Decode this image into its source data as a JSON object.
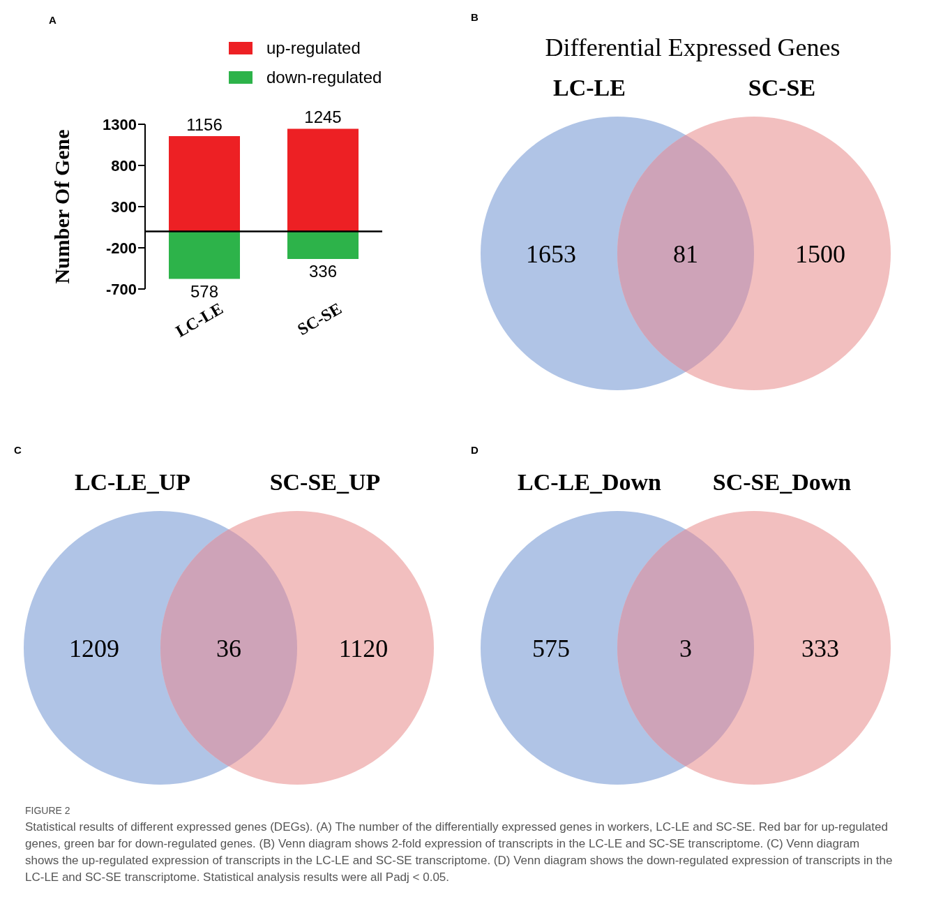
{
  "chart_data": [
    {
      "type": "bar",
      "title": "A",
      "categories": [
        "LC-LE",
        "SC-SE"
      ],
      "ylabel": "Number Of Gene",
      "ylim": [
        -700,
        1300
      ],
      "yticks": [
        -700,
        -200,
        300,
        800,
        1300
      ],
      "legend": "top",
      "ref_lines": [
        {
          "axis": "y",
          "value": 0
        }
      ],
      "series": [
        {
          "name": "up-regulated",
          "color": "#ed2024",
          "values": [
            1156,
            1245
          ],
          "base": [
            0,
            0
          ],
          "value_labels": [
            "1156",
            "1245"
          ]
        },
        {
          "name": "down-regulated",
          "color": "#2db34a",
          "values": [
            578,
            336
          ],
          "base": [
            -578,
            -336
          ],
          "value_labels": [
            "578",
            "336"
          ]
        }
      ]
    },
    {
      "type": "other",
      "title": "B",
      "subtitle": "Differential Expressed Genes",
      "categories": [
        null,
        null,
        null
      ],
      "values": [
        1653,
        81,
        1500
      ],
      "data_labels": true,
      "colors": [
        "#b0c4e6",
        "#cea3b8",
        "#f2bfbf"
      ],
      "annotations": [
        "LC-LE",
        "SC-SE"
      ]
    },
    {
      "type": "other",
      "title": "C",
      "categories": [
        null,
        null,
        null
      ],
      "values": [
        1209,
        36,
        1120
      ],
      "data_labels": true,
      "colors": [
        "#b0c4e6",
        "#cea3b8",
        "#f2bfbf"
      ],
      "annotations": [
        "LC-LE_UP",
        "SC-SE_UP"
      ]
    },
    {
      "type": "other",
      "title": "D",
      "categories": [
        null,
        null,
        null
      ],
      "values": [
        575,
        3,
        333
      ],
      "data_labels": true,
      "colors": [
        "#b0c4e6",
        "#cea3b8",
        "#f2bfbf"
      ],
      "annotations": [
        "LC-LE_Down",
        "SC-SE_Down",
        "FIGURE 2",
        "Statistical results of different expressed genes (DEGs). (A) The number of the differentially expressed genes in workers, LC-LE and SC-SE. Red bar for up-regulated genes, green bar for down-regulated genes. (B) Venn diagram shows 2-fold expression of transcripts in the LC-LE and SC-SE transcriptome. (C) Venn diagram shows the up-regulated expression of transcripts in the LC-LE and SC-SE transcriptome. (D) Venn diagram shows the down-regulated expression of transcripts in the LC-LE and SC-SE transcriptome. Statistical analysis results were all Padj < 0.05."
      ]
    }
  ]
}
